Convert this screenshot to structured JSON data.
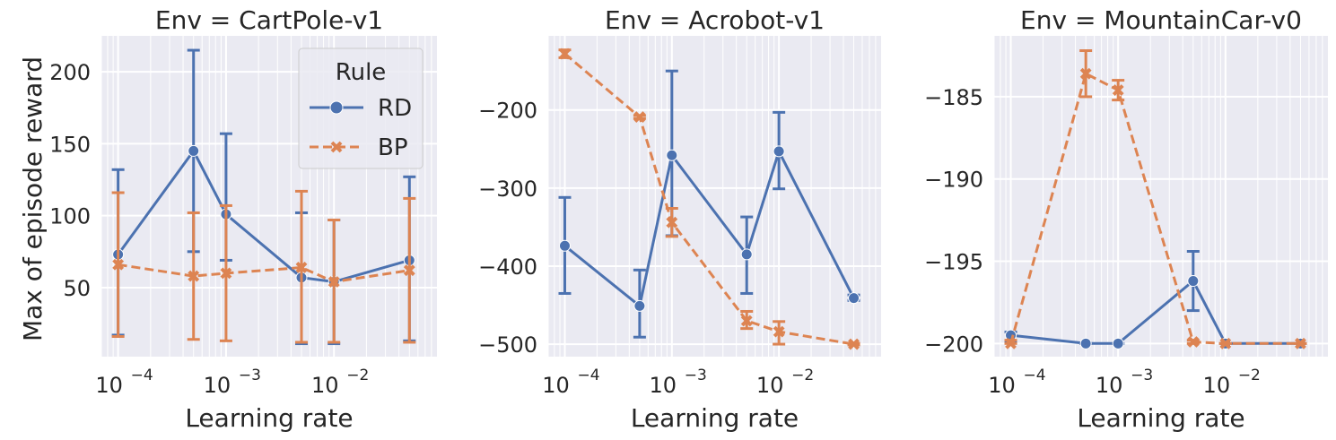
{
  "figure": {
    "xlabel": "Learning rate",
    "ylabel": "Max of episode reward",
    "legend": {
      "title": "Rule",
      "placement": "top-right (first panel)",
      "entries": [
        {
          "name": "RD",
          "color": "#4c72b0",
          "marker": "circle",
          "line": "solid"
        },
        {
          "name": "BP",
          "color": "#dd8452",
          "marker": "x",
          "line": "dashed"
        }
      ]
    },
    "background": "#eaeaf2",
    "grid_color": "#ffffff"
  },
  "chart_data": [
    {
      "type": "line",
      "title": "Env = CartPole-v1",
      "xscale": "log",
      "xlim": [
        7e-05,
        0.09
      ],
      "ylim": [
        2,
        225
      ],
      "yticks": [
        50,
        100,
        150,
        200
      ],
      "ytick_labels": [
        "50",
        "100",
        "150",
        "200"
      ],
      "x": [
        0.0001,
        0.0005,
        0.001,
        0.005,
        0.01,
        0.05
      ],
      "series": [
        {
          "name": "RD",
          "values": [
            73,
            145,
            101,
            57,
            54,
            69
          ],
          "err_low": [
            17,
            75,
            69,
            11,
            11,
            13
          ],
          "err_high": [
            132,
            215,
            157,
            102,
            97,
            127
          ]
        },
        {
          "name": "BP",
          "values": [
            66,
            58,
            60,
            64,
            54,
            62
          ],
          "err_low": [
            16,
            14,
            13,
            12,
            12,
            12
          ],
          "err_high": [
            116,
            102,
            107,
            117,
            97,
            112
          ]
        }
      ]
    },
    {
      "type": "line",
      "title": "Env = Acrobot-v1",
      "xscale": "log",
      "xlim": [
        7e-05,
        0.09
      ],
      "ylim": [
        -516,
        -105
      ],
      "yticks": [
        -500,
        -400,
        -300,
        -200
      ],
      "ytick_labels": [
        "−500",
        "−400",
        "−300",
        "−200"
      ],
      "x": [
        0.0001,
        0.0005,
        0.001,
        0.005,
        0.01,
        0.05
      ],
      "series": [
        {
          "name": "RD",
          "values": [
            -374,
            -451,
            -258,
            -385,
            -253,
            -441
          ],
          "err_low": [
            -435,
            -491,
            -361,
            -435,
            -301,
            -444
          ],
          "err_high": [
            -312,
            -405,
            -150,
            -337,
            -203,
            -437
          ]
        },
        {
          "name": "BP",
          "values": [
            -128,
            -209,
            -344,
            -470,
            -484,
            -500
          ],
          "err_low": [
            -133,
            -211,
            -362,
            -480,
            -500,
            -501
          ],
          "err_high": [
            -123,
            -207,
            -326,
            -458,
            -471,
            -499
          ]
        }
      ]
    },
    {
      "type": "line",
      "title": "Env = MountainCar-v0",
      "xscale": "log",
      "xlim": [
        7e-05,
        0.09
      ],
      "ylim": [
        -200.8,
        -181.3
      ],
      "yticks": [
        -200,
        -195,
        -190,
        -185
      ],
      "ytick_labels": [
        "−200",
        "−195",
        "−190",
        "−185"
      ],
      "x": [
        0.0001,
        0.0005,
        0.001,
        0.005,
        0.01,
        0.05
      ],
      "series": [
        {
          "name": "RD",
          "values": [
            -199.5,
            -200,
            -200,
            -196.2,
            -200,
            -200
          ],
          "err_low": [
            -199.9,
            -200,
            -200,
            -198,
            -200,
            -200
          ],
          "err_high": [
            -199.3,
            -200,
            -200,
            -194.4,
            -200,
            -200
          ]
        },
        {
          "name": "BP",
          "values": [
            -200,
            -183.6,
            -184.6,
            -199.9,
            -200,
            -200
          ],
          "err_low": [
            -200,
            -185,
            -185.2,
            -200,
            -200,
            -200
          ],
          "err_high": [
            -199.8,
            -182.2,
            -184,
            -199.8,
            -200,
            -200
          ]
        }
      ]
    }
  ],
  "xtick_labels": [
    "10",
    "10",
    "10"
  ],
  "xtick_exponents": [
    "−4",
    "−3",
    "−2"
  ]
}
